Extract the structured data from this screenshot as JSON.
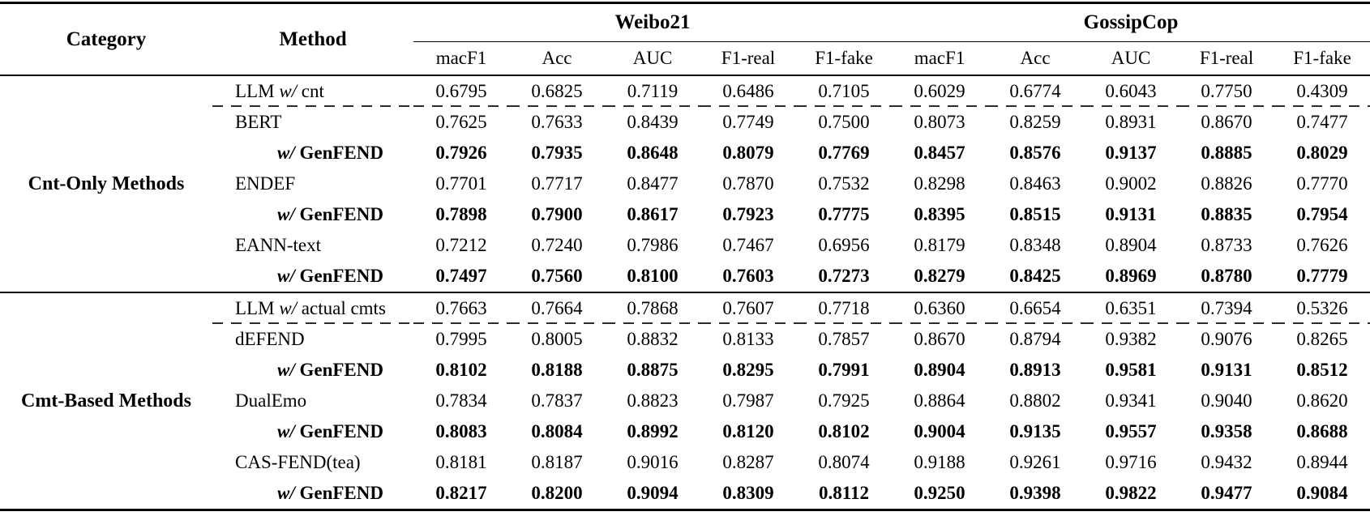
{
  "table": {
    "col_headers": {
      "category": "Category",
      "method": "Method",
      "group1": "Weibo21",
      "group2": "GossipCop",
      "metrics": [
        "macF1",
        "Acc",
        "AUC",
        "F1-real",
        "F1-fake"
      ]
    },
    "sections": [
      {
        "category": "Cnt-Only Methods",
        "rows": [
          {
            "label": "LLM w/ cnt",
            "method": {
              "pre": "LLM ",
              "it": "w/",
              "post": " cnt"
            },
            "bold": false,
            "indent": false,
            "dashed_below": true,
            "values": [
              "0.6795",
              "0.6825",
              "0.7119",
              "0.6486",
              "0.7105",
              "0.6029",
              "0.6774",
              "0.6043",
              "0.7750",
              "0.4309"
            ]
          },
          {
            "label": "BERT",
            "method": {
              "pre": "BERT",
              "it": "",
              "post": ""
            },
            "bold": false,
            "indent": false,
            "dashed_below": false,
            "values": [
              "0.7625",
              "0.7633",
              "0.8439",
              "0.7749",
              "0.7500",
              "0.8073",
              "0.8259",
              "0.8931",
              "0.8670",
              "0.7477"
            ]
          },
          {
            "label": "w/ GenFEND",
            "method": {
              "pre": "",
              "it": "w/",
              "post": " GenFEND"
            },
            "bold": true,
            "indent": true,
            "dashed_below": false,
            "values": [
              "0.7926",
              "0.7935",
              "0.8648",
              "0.8079",
              "0.7769",
              "0.8457",
              "0.8576",
              "0.9137",
              "0.8885",
              "0.8029"
            ]
          },
          {
            "label": "ENDEF",
            "method": {
              "pre": "ENDEF",
              "it": "",
              "post": ""
            },
            "bold": false,
            "indent": false,
            "dashed_below": false,
            "values": [
              "0.7701",
              "0.7717",
              "0.8477",
              "0.7870",
              "0.7532",
              "0.8298",
              "0.8463",
              "0.9002",
              "0.8826",
              "0.7770"
            ]
          },
          {
            "label": "w/ GenFEND",
            "method": {
              "pre": "",
              "it": "w/",
              "post": " GenFEND"
            },
            "bold": true,
            "indent": true,
            "dashed_below": false,
            "values": [
              "0.7898",
              "0.7900",
              "0.8617",
              "0.7923",
              "0.7775",
              "0.8395",
              "0.8515",
              "0.9131",
              "0.8835",
              "0.7954"
            ]
          },
          {
            "label": "EANN-text",
            "method": {
              "pre": "EANN-text",
              "it": "",
              "post": ""
            },
            "bold": false,
            "indent": false,
            "dashed_below": false,
            "values": [
              "0.7212",
              "0.7240",
              "0.7986",
              "0.7467",
              "0.6956",
              "0.8179",
              "0.8348",
              "0.8904",
              "0.8733",
              "0.7626"
            ]
          },
          {
            "label": "w/ GenFEND",
            "method": {
              "pre": "",
              "it": "w/",
              "post": " GenFEND"
            },
            "bold": true,
            "indent": true,
            "dashed_below": false,
            "values": [
              "0.7497",
              "0.7560",
              "0.8100",
              "0.7603",
              "0.7273",
              "0.8279",
              "0.8425",
              "0.8969",
              "0.8780",
              "0.7779"
            ]
          }
        ]
      },
      {
        "category": "Cmt-Based Methods",
        "rows": [
          {
            "label": "LLM w/ actual cmts",
            "method": {
              "pre": "LLM ",
              "it": "w/",
              "post": " actual cmts"
            },
            "bold": false,
            "indent": false,
            "dashed_below": true,
            "values": [
              "0.7663",
              "0.7664",
              "0.7868",
              "0.7607",
              "0.7718",
              "0.6360",
              "0.6654",
              "0.6351",
              "0.7394",
              "0.5326"
            ]
          },
          {
            "label": "dEFEND",
            "method": {
              "pre": "dEFEND",
              "it": "",
              "post": ""
            },
            "bold": false,
            "indent": false,
            "dashed_below": false,
            "values": [
              "0.7995",
              "0.8005",
              "0.8832",
              "0.8133",
              "0.7857",
              "0.8670",
              "0.8794",
              "0.9382",
              "0.9076",
              "0.8265"
            ]
          },
          {
            "label": "w/ GenFEND",
            "method": {
              "pre": "",
              "it": "w/",
              "post": " GenFEND"
            },
            "bold": true,
            "indent": true,
            "dashed_below": false,
            "values": [
              "0.8102",
              "0.8188",
              "0.8875",
              "0.8295",
              "0.7991",
              "0.8904",
              "0.8913",
              "0.9581",
              "0.9131",
              "0.8512"
            ]
          },
          {
            "label": "DualEmo",
            "method": {
              "pre": "DualEmo",
              "it": "",
              "post": ""
            },
            "bold": false,
            "indent": false,
            "dashed_below": false,
            "values": [
              "0.7834",
              "0.7837",
              "0.8823",
              "0.7987",
              "0.7925",
              "0.8864",
              "0.8802",
              "0.9341",
              "0.9040",
              "0.8620"
            ]
          },
          {
            "label": "w/ GenFEND",
            "method": {
              "pre": "",
              "it": "w/",
              "post": " GenFEND"
            },
            "bold": true,
            "indent": true,
            "dashed_below": false,
            "values": [
              "0.8083",
              "0.8084",
              "0.8992",
              "0.8120",
              "0.8102",
              "0.9004",
              "0.9135",
              "0.9557",
              "0.9358",
              "0.8688"
            ]
          },
          {
            "label": "CAS-FEND(tea)",
            "method": {
              "pre": "CAS-FEND(tea)",
              "it": "",
              "post": ""
            },
            "bold": false,
            "indent": false,
            "dashed_below": false,
            "values": [
              "0.8181",
              "0.8187",
              "0.9016",
              "0.8287",
              "0.8074",
              "0.9188",
              "0.9261",
              "0.9716",
              "0.9432",
              "0.8944"
            ]
          },
          {
            "label": "w/ GenFEND",
            "method": {
              "pre": "",
              "it": "w/",
              "post": " GenFEND"
            },
            "bold": true,
            "indent": true,
            "dashed_below": false,
            "values": [
              "0.8217",
              "0.8200",
              "0.9094",
              "0.8309",
              "0.8112",
              "0.9250",
              "0.9398",
              "0.9822",
              "0.9477",
              "0.9084"
            ]
          }
        ]
      }
    ]
  }
}
